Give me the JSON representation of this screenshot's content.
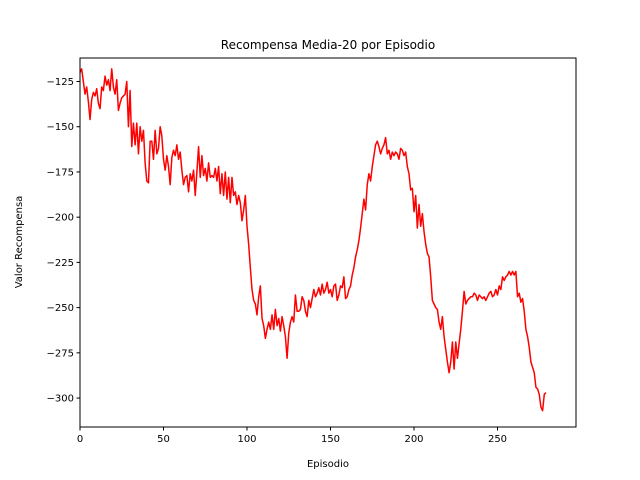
{
  "chart_data": {
    "type": "line",
    "title": "Recompensa Media-20 por Episodio",
    "xlabel": "Episodio",
    "ylabel": "Valor Recompensa",
    "xlim": [
      0,
      297
    ],
    "ylim": [
      -316,
      -112
    ],
    "xticks": [
      0,
      50,
      100,
      150,
      200,
      250
    ],
    "yticks": [
      -125,
      -150,
      -175,
      -200,
      -225,
      -250,
      -275,
      -300
    ],
    "xtick_labels": [
      "0",
      "50",
      "100",
      "150",
      "200",
      "250"
    ],
    "ytick_labels": [
      "−125",
      "−150",
      "−175",
      "−200",
      "−225",
      "−250",
      "−275",
      "−300"
    ],
    "grid": false,
    "series": [
      {
        "color": "#ff0000",
        "points": [
          [
            0,
            -120
          ],
          [
            1,
            -118
          ],
          [
            2,
            -125
          ],
          [
            3,
            -132
          ],
          [
            4,
            -128
          ],
          [
            5,
            -136
          ],
          [
            6,
            -146
          ],
          [
            7,
            -135
          ],
          [
            8,
            -131
          ],
          [
            9,
            -133
          ],
          [
            10,
            -129
          ],
          [
            11,
            -137
          ],
          [
            12,
            -140
          ],
          [
            13,
            -128
          ],
          [
            14,
            -130
          ],
          [
            15,
            -122
          ],
          [
            16,
            -127
          ],
          [
            17,
            -124
          ],
          [
            18,
            -130
          ],
          [
            19,
            -118
          ],
          [
            20,
            -128
          ],
          [
            21,
            -132
          ],
          [
            22,
            -124
          ],
          [
            23,
            -141
          ],
          [
            24,
            -137
          ],
          [
            25,
            -134
          ],
          [
            26,
            -133
          ],
          [
            27,
            -132
          ],
          [
            28,
            -125
          ],
          [
            29,
            -150
          ],
          [
            30,
            -130
          ],
          [
            31,
            -161
          ],
          [
            32,
            -148
          ],
          [
            33,
            -160
          ],
          [
            34,
            -148
          ],
          [
            35,
            -165
          ],
          [
            36,
            -150
          ],
          [
            37,
            -158
          ],
          [
            38,
            -152
          ],
          [
            39,
            -170
          ],
          [
            40,
            -180
          ],
          [
            41,
            -181
          ],
          [
            42,
            -158
          ],
          [
            43,
            -158
          ],
          [
            44,
            -168
          ],
          [
            45,
            -152
          ],
          [
            46,
            -165
          ],
          [
            47,
            -162
          ],
          [
            48,
            -150
          ],
          [
            49,
            -155
          ],
          [
            50,
            -168
          ],
          [
            51,
            -174
          ],
          [
            52,
            -166
          ],
          [
            53,
            -172
          ],
          [
            54,
            -182
          ],
          [
            55,
            -167
          ],
          [
            56,
            -163
          ],
          [
            57,
            -166
          ],
          [
            58,
            -160
          ],
          [
            59,
            -168
          ],
          [
            60,
            -164
          ],
          [
            61,
            -174
          ],
          [
            62,
            -182
          ],
          [
            63,
            -178
          ],
          [
            64,
            -177
          ],
          [
            65,
            -186
          ],
          [
            66,
            -176
          ],
          [
            67,
            -180
          ],
          [
            68,
            -174
          ],
          [
            69,
            -188
          ],
          [
            70,
            -175
          ],
          [
            71,
            -161
          ],
          [
            72,
            -178
          ],
          [
            73,
            -166
          ],
          [
            74,
            -177
          ],
          [
            75,
            -173
          ],
          [
            76,
            -180
          ],
          [
            77,
            -170
          ],
          [
            78,
            -178
          ],
          [
            79,
            -177
          ],
          [
            80,
            -178
          ],
          [
            81,
            -173
          ],
          [
            82,
            -180
          ],
          [
            83,
            -172
          ],
          [
            84,
            -187
          ],
          [
            85,
            -176
          ],
          [
            86,
            -188
          ],
          [
            87,
            -175
          ],
          [
            88,
            -190
          ],
          [
            89,
            -178
          ],
          [
            90,
            -192
          ],
          [
            91,
            -178
          ],
          [
            92,
            -188
          ],
          [
            93,
            -186
          ],
          [
            94,
            -193
          ],
          [
            95,
            -188
          ],
          [
            96,
            -192
          ],
          [
            97,
            -202
          ],
          [
            98,
            -196
          ],
          [
            99,
            -188
          ],
          [
            100,
            -205
          ],
          [
            101,
            -215
          ],
          [
            102,
            -228
          ],
          [
            103,
            -240
          ],
          [
            104,
            -246
          ],
          [
            105,
            -248
          ],
          [
            106,
            -254
          ],
          [
            107,
            -244
          ],
          [
            108,
            -238
          ],
          [
            109,
            -256
          ],
          [
            110,
            -260
          ],
          [
            111,
            -267
          ],
          [
            112,
            -262
          ],
          [
            113,
            -258
          ],
          [
            114,
            -262
          ],
          [
            115,
            -254
          ],
          [
            116,
            -262
          ],
          [
            117,
            -251
          ],
          [
            118,
            -260
          ],
          [
            119,
            -256
          ],
          [
            120,
            -263
          ],
          [
            121,
            -255
          ],
          [
            122,
            -260
          ],
          [
            123,
            -266
          ],
          [
            124,
            -278
          ],
          [
            125,
            -264
          ],
          [
            126,
            -258
          ],
          [
            127,
            -255
          ],
          [
            128,
            -258
          ],
          [
            129,
            -243
          ],
          [
            130,
            -252
          ],
          [
            131,
            -252
          ],
          [
            132,
            -251
          ],
          [
            133,
            -244
          ],
          [
            134,
            -246
          ],
          [
            135,
            -252
          ],
          [
            136,
            -255
          ],
          [
            137,
            -246
          ],
          [
            138,
            -250
          ],
          [
            139,
            -245
          ],
          [
            140,
            -240
          ],
          [
            141,
            -244
          ],
          [
            142,
            -242
          ],
          [
            143,
            -239
          ],
          [
            144,
            -243
          ],
          [
            145,
            -237
          ],
          [
            146,
            -242
          ],
          [
            147,
            -240
          ],
          [
            148,
            -236
          ],
          [
            149,
            -242
          ],
          [
            150,
            -240
          ],
          [
            151,
            -244
          ],
          [
            152,
            -238
          ],
          [
            153,
            -237
          ],
          [
            154,
            -246
          ],
          [
            155,
            -243
          ],
          [
            156,
            -238
          ],
          [
            157,
            -239
          ],
          [
            158,
            -233
          ],
          [
            159,
            -245
          ],
          [
            160,
            -244
          ],
          [
            161,
            -240
          ],
          [
            162,
            -238
          ],
          [
            163,
            -232
          ],
          [
            164,
            -228
          ],
          [
            165,
            -222
          ],
          [
            166,
            -218
          ],
          [
            167,
            -213
          ],
          [
            168,
            -206
          ],
          [
            169,
            -198
          ],
          [
            170,
            -190
          ],
          [
            171,
            -196
          ],
          [
            172,
            -182
          ],
          [
            173,
            -176
          ],
          [
            174,
            -180
          ],
          [
            175,
            -172
          ],
          [
            176,
            -166
          ],
          [
            177,
            -160
          ],
          [
            178,
            -158
          ],
          [
            179,
            -161
          ],
          [
            180,
            -165
          ],
          [
            181,
            -162
          ],
          [
            182,
            -160
          ],
          [
            183,
            -156
          ],
          [
            184,
            -165
          ],
          [
            185,
            -163
          ],
          [
            186,
            -168
          ],
          [
            187,
            -164
          ],
          [
            188,
            -166
          ],
          [
            189,
            -164
          ],
          [
            190,
            -165
          ],
          [
            191,
            -168
          ],
          [
            192,
            -162
          ],
          [
            193,
            -163
          ],
          [
            194,
            -166
          ],
          [
            195,
            -164
          ],
          [
            196,
            -172
          ],
          [
            197,
            -176
          ],
          [
            198,
            -185
          ],
          [
            199,
            -184
          ],
          [
            200,
            -197
          ],
          [
            201,
            -188
          ],
          [
            202,
            -206
          ],
          [
            203,
            -193
          ],
          [
            204,
            -205
          ],
          [
            205,
            -198
          ],
          [
            206,
            -208
          ],
          [
            207,
            -215
          ],
          [
            208,
            -220
          ],
          [
            209,
            -222
          ],
          [
            210,
            -233
          ],
          [
            211,
            -246
          ],
          [
            212,
            -248
          ],
          [
            213,
            -250
          ],
          [
            214,
            -251
          ],
          [
            215,
            -258
          ],
          [
            216,
            -262
          ],
          [
            217,
            -255
          ],
          [
            218,
            -266
          ],
          [
            219,
            -273
          ],
          [
            220,
            -280
          ],
          [
            221,
            -286
          ],
          [
            222,
            -280
          ],
          [
            223,
            -269
          ],
          [
            224,
            -284
          ],
          [
            225,
            -269
          ],
          [
            226,
            -278
          ],
          [
            227,
            -270
          ],
          [
            228,
            -262
          ],
          [
            229,
            -252
          ],
          [
            230,
            -241
          ],
          [
            231,
            -248
          ],
          [
            232,
            -246
          ],
          [
            233,
            -245
          ],
          [
            234,
            -244
          ],
          [
            235,
            -244
          ],
          [
            236,
            -242
          ],
          [
            237,
            -243
          ],
          [
            238,
            -246
          ],
          [
            239,
            -243
          ],
          [
            240,
            -244
          ],
          [
            241,
            -245
          ],
          [
            242,
            -244
          ],
          [
            243,
            -246
          ],
          [
            244,
            -244
          ],
          [
            245,
            -242
          ],
          [
            246,
            -241
          ],
          [
            247,
            -244
          ],
          [
            248,
            -243
          ],
          [
            249,
            -240
          ],
          [
            250,
            -243
          ],
          [
            251,
            -238
          ],
          [
            252,
            -240
          ],
          [
            253,
            -233
          ],
          [
            254,
            -235
          ],
          [
            255,
            -233
          ],
          [
            256,
            -232
          ],
          [
            257,
            -230
          ],
          [
            258,
            -232
          ],
          [
            259,
            -230
          ],
          [
            260,
            -232
          ],
          [
            261,
            -230
          ],
          [
            262,
            -244
          ],
          [
            263,
            -242
          ],
          [
            264,
            -247
          ],
          [
            265,
            -245
          ],
          [
            266,
            -252
          ],
          [
            267,
            -262
          ],
          [
            268,
            -266
          ],
          [
            269,
            -272
          ],
          [
            270,
            -280
          ],
          [
            271,
            -283
          ],
          [
            272,
            -286
          ],
          [
            273,
            -294
          ],
          [
            274,
            -295
          ],
          [
            275,
            -298
          ],
          [
            276,
            -305
          ],
          [
            277,
            -307
          ],
          [
            278,
            -298
          ],
          [
            279,
            -297
          ]
        ]
      }
    ]
  }
}
